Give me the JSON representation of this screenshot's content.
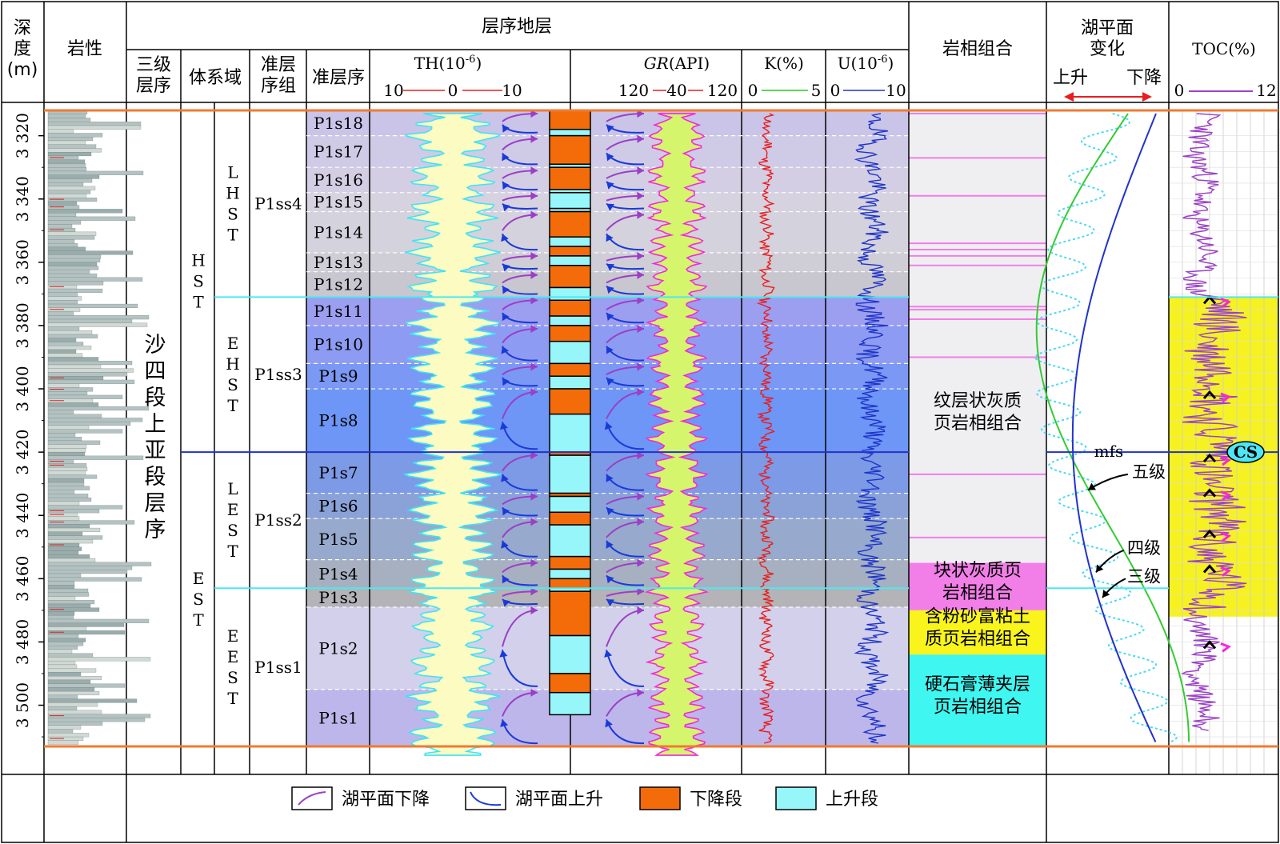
{
  "headers": {
    "depth": [
      "深",
      "度",
      "(m)"
    ],
    "lithology": "岩性",
    "sequence_stratigraphy": "层序地层",
    "third_order": [
      "三级",
      "层序"
    ],
    "system_tract": "体系域",
    "parasequence_set": [
      "准层",
      "序组"
    ],
    "parasequence": "准层序",
    "th": "TH(10",
    "th_sup": "-6",
    "th_sup_close": ")",
    "th_scale": [
      "10",
      "0",
      "10"
    ],
    "gr": "GR",
    "gr_unit": "(API)",
    "gr_scale": [
      "120",
      "40",
      "120"
    ],
    "k": "K(%)",
    "k_scale": [
      "0",
      "5"
    ],
    "u": "U(10",
    "u_sup": "-6",
    "u_sup_close": ")",
    "u_scale": [
      "0",
      "10"
    ],
    "facies": "岩相组合",
    "lake_level": [
      "湖平面",
      "变化"
    ],
    "rise": "上升",
    "fall": "下降",
    "toc": "TOC(%)",
    "toc_scale": [
      "0",
      "12"
    ]
  },
  "depth_ticks": [
    "3 320",
    "3 340",
    "3 360",
    "3 380",
    "3 400",
    "3 420",
    "3 440",
    "3 460",
    "3 480",
    "3 500"
  ],
  "third_order_sequence": "沙四段上亚段层序",
  "system_tracts": [
    {
      "name": "HST",
      "top": 3312,
      "bottom": 3420
    },
    {
      "name": "EST",
      "top": 3420,
      "bottom": 3513
    }
  ],
  "sub_tracts": [
    {
      "name": "LHST",
      "top": 3312,
      "bottom": 3371
    },
    {
      "name": "EHST",
      "top": 3371,
      "bottom": 3420
    },
    {
      "name": "LEST",
      "top": 3420,
      "bottom": 3463
    },
    {
      "name": "EEST",
      "top": 3463,
      "bottom": 3513
    }
  ],
  "parasequence_sets": [
    {
      "name": "P1ss4",
      "top": 3312,
      "bottom": 3371
    },
    {
      "name": "P1ss3",
      "top": 3371,
      "bottom": 3420
    },
    {
      "name": "P1ss2",
      "top": 3420,
      "bottom": 3463
    },
    {
      "name": "P1ss1",
      "top": 3463,
      "bottom": 3513
    }
  ],
  "parasequences": [
    {
      "name": "P1s18",
      "top": 3312,
      "bottom": 3320,
      "color": "#c9c4e8"
    },
    {
      "name": "P1s17",
      "top": 3320,
      "bottom": 3330,
      "color": "#cfcae6"
    },
    {
      "name": "P1s16",
      "top": 3330,
      "bottom": 3338,
      "color": "#d3cee3"
    },
    {
      "name": "P1s15",
      "top": 3338,
      "bottom": 3344,
      "color": "#d6d2e0"
    },
    {
      "name": "P1s14",
      "top": 3344,
      "bottom": 3357,
      "color": "#d4d2dc"
    },
    {
      "name": "P1s13",
      "top": 3357,
      "bottom": 3363,
      "color": "#cfcdd6"
    },
    {
      "name": "P1s12",
      "top": 3363,
      "bottom": 3371,
      "color": "#c8c6cf"
    },
    {
      "name": "P1s11",
      "top": 3371,
      "bottom": 3380,
      "color": "#9c9ef0"
    },
    {
      "name": "P1s10",
      "top": 3380,
      "bottom": 3392,
      "color": "#8d9cf2"
    },
    {
      "name": "P1s9",
      "top": 3392,
      "bottom": 3400,
      "color": "#7a98f4"
    },
    {
      "name": "P1s8",
      "top": 3400,
      "bottom": 3420,
      "color": "#6e96f6"
    },
    {
      "name": "P1s7",
      "top": 3420,
      "bottom": 3433,
      "color": "#7d9ae6"
    },
    {
      "name": "P1s6",
      "top": 3433,
      "bottom": 3441,
      "color": "#8aa2d8"
    },
    {
      "name": "P1s5",
      "top": 3441,
      "bottom": 3454,
      "color": "#97a9cc"
    },
    {
      "name": "P1s4",
      "top": 3454,
      "bottom": 3463,
      "color": "#a7b0c0"
    },
    {
      "name": "P1s3",
      "top": 3463,
      "bottom": 3469,
      "color": "#b3b3b8"
    },
    {
      "name": "P1s2",
      "top": 3469,
      "bottom": 3495,
      "color": "#d2d0ea"
    },
    {
      "name": "P1s1",
      "top": 3495,
      "bottom": 3513,
      "color": "#bdb6ea"
    }
  ],
  "cycle_blocks": [
    {
      "top": 3312,
      "bottom": 3318,
      "kind": "fall"
    },
    {
      "top": 3318,
      "bottom": 3320,
      "kind": "rise"
    },
    {
      "top": 3320,
      "bottom": 3329,
      "kind": "fall"
    },
    {
      "top": 3329,
      "bottom": 3330,
      "kind": "rise"
    },
    {
      "top": 3330,
      "bottom": 3337,
      "kind": "fall"
    },
    {
      "top": 3337,
      "bottom": 3338,
      "kind": "rise"
    },
    {
      "top": 3338,
      "bottom": 3343,
      "kind": "rise"
    },
    {
      "top": 3343,
      "bottom": 3344,
      "kind": "rise"
    },
    {
      "top": 3344,
      "bottom": 3352,
      "kind": "fall"
    },
    {
      "top": 3352,
      "bottom": 3355,
      "kind": "rise"
    },
    {
      "top": 3355,
      "bottom": 3358,
      "kind": "fall"
    },
    {
      "top": 3358,
      "bottom": 3361,
      "kind": "rise"
    },
    {
      "top": 3361,
      "bottom": 3368,
      "kind": "fall"
    },
    {
      "top": 3368,
      "bottom": 3372,
      "kind": "rise"
    },
    {
      "top": 3372,
      "bottom": 3377,
      "kind": "fall"
    },
    {
      "top": 3377,
      "bottom": 3380,
      "kind": "rise"
    },
    {
      "top": 3380,
      "bottom": 3385,
      "kind": "fall"
    },
    {
      "top": 3385,
      "bottom": 3392,
      "kind": "rise"
    },
    {
      "top": 3392,
      "bottom": 3396,
      "kind": "fall"
    },
    {
      "top": 3396,
      "bottom": 3400,
      "kind": "rise"
    },
    {
      "top": 3400,
      "bottom": 3408,
      "kind": "fall"
    },
    {
      "top": 3408,
      "bottom": 3420,
      "kind": "rise"
    },
    {
      "top": 3420,
      "bottom": 3421,
      "kind": "fall"
    },
    {
      "top": 3421,
      "bottom": 3433,
      "kind": "rise"
    },
    {
      "top": 3433,
      "bottom": 3434,
      "kind": "fall"
    },
    {
      "top": 3434,
      "bottom": 3439,
      "kind": "rise"
    },
    {
      "top": 3439,
      "bottom": 3443,
      "kind": "fall"
    },
    {
      "top": 3443,
      "bottom": 3453,
      "kind": "rise"
    },
    {
      "top": 3453,
      "bottom": 3457,
      "kind": "fall"
    },
    {
      "top": 3457,
      "bottom": 3460,
      "kind": "rise"
    },
    {
      "top": 3460,
      "bottom": 3463,
      "kind": "fall"
    },
    {
      "top": 3463,
      "bottom": 3464,
      "kind": "rise"
    },
    {
      "top": 3464,
      "bottom": 3478,
      "kind": "fall"
    },
    {
      "top": 3478,
      "bottom": 3490,
      "kind": "rise"
    },
    {
      "top": 3490,
      "bottom": 3496,
      "kind": "fall"
    },
    {
      "top": 3496,
      "bottom": 3503,
      "kind": "rise"
    }
  ],
  "facies": [
    {
      "name": [
        "纹层状灰质",
        "页岩相组合"
      ],
      "top": 3312,
      "bottom": 3455,
      "color": "#efeff2"
    },
    {
      "name": [
        "块状灰质页",
        "岩相组合"
      ],
      "top": 3455,
      "bottom": 3470,
      "color": "#f27ee8"
    },
    {
      "name": [
        "含粉砂富粘土",
        "质页岩相组合"
      ],
      "top": 3470,
      "bottom": 3484,
      "color": "#f8f41c"
    },
    {
      "name": [
        "硬石膏薄夹层",
        "页岩相组合"
      ],
      "top": 3484,
      "bottom": 3513,
      "color": "#3ff6f0"
    }
  ],
  "mfs_label": "mfs",
  "cs_label": "CS",
  "order_labels": [
    "五级",
    "四级",
    "三级"
  ],
  "legend": [
    {
      "label": "湖平面下降",
      "kind": "fall-arrow"
    },
    {
      "label": "湖平面上升",
      "kind": "rise-arrow"
    },
    {
      "label": "下降段",
      "kind": "fall-block"
    },
    {
      "label": "上升段",
      "kind": "rise-block"
    }
  ],
  "colors": {
    "fall_block": "#f46c0a",
    "rise_block": "#97f6fa",
    "th_curve": "#3fe4f6",
    "th_fill": "#fbfbc2",
    "gr_curve": "#f629d6",
    "gr_fill": "#d4f56c",
    "k_curve": "#e81e1e",
    "u_curve": "#1e34c8",
    "toc_curve": "#9b43c6",
    "toc_zone": "#f6f221",
    "boundary": "#f07a32",
    "mfs": "#2233cc",
    "cyan_line": "#4ee8f2",
    "fall_arrow": "#9b3fc6",
    "rise_arrow": "#1a3ad8"
  }
}
